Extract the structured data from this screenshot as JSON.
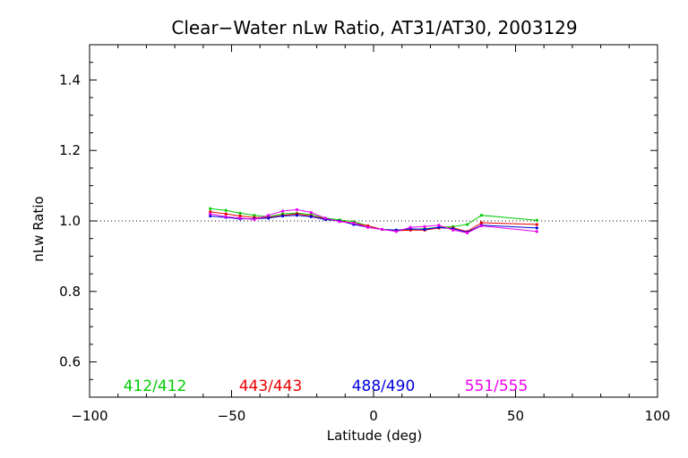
{
  "chart_data": {
    "type": "line",
    "title": "Clear−Water nLw Ratio, AT31/AT30, 2003129",
    "xlabel": "Latitude (deg)",
    "ylabel": "nLw Ratio",
    "xlim": [
      -100,
      100
    ],
    "ylim": [
      0.5,
      1.5
    ],
    "x_ticks": [
      -100,
      -50,
      0,
      50,
      100
    ],
    "x_tick_labels": [
      "−100",
      "−50",
      "0",
      "50",
      "100"
    ],
    "y_ticks": [
      0.6,
      0.8,
      1.0,
      1.2,
      1.4
    ],
    "y_tick_labels": [
      "0.6",
      "0.8",
      "1.0",
      "1.2",
      "1.4"
    ],
    "reference_line": {
      "y": 1.0,
      "style": "dotted"
    },
    "grid": false,
    "legend_placement": "bottom inside plot",
    "x": [
      -57.5,
      -52,
      -47,
      -42,
      -37,
      -32,
      -27,
      -22,
      -17,
      -12,
      -7,
      -2,
      3,
      8,
      13,
      18,
      23,
      28,
      33,
      38,
      57.5
    ],
    "series": [
      {
        "name": "412/412",
        "color": "#00cc00",
        "values": [
          1.035,
          1.03,
          1.022,
          1.016,
          1.012,
          1.02,
          1.022,
          1.018,
          1.008,
          1.003,
          0.998,
          0.986,
          0.976,
          0.974,
          0.976,
          0.978,
          0.982,
          0.984,
          0.99,
          1.016,
          1.002
        ]
      },
      {
        "name": "443/443",
        "color": "#ee0000",
        "values": [
          1.026,
          1.02,
          1.014,
          1.01,
          1.01,
          1.016,
          1.02,
          1.014,
          1.006,
          1.0,
          0.994,
          0.986,
          0.976,
          0.972,
          0.974,
          0.974,
          0.98,
          0.98,
          0.97,
          0.995,
          0.99
        ]
      },
      {
        "name": "488/490",
        "color": "#0000dd",
        "values": [
          1.014,
          1.01,
          1.006,
          1.006,
          1.008,
          1.014,
          1.016,
          1.012,
          1.004,
          1.0,
          0.99,
          0.982,
          0.976,
          0.974,
          0.978,
          0.976,
          0.982,
          0.978,
          0.968,
          0.988,
          0.98
        ]
      },
      {
        "name": "551/555",
        "color": "#ee00ee",
        "values": [
          1.02,
          1.012,
          1.008,
          1.004,
          1.016,
          1.028,
          1.032,
          1.024,
          1.008,
          0.998,
          0.994,
          0.982,
          0.976,
          0.97,
          0.982,
          0.984,
          0.988,
          0.974,
          0.966,
          0.986,
          0.97
        ]
      }
    ]
  }
}
